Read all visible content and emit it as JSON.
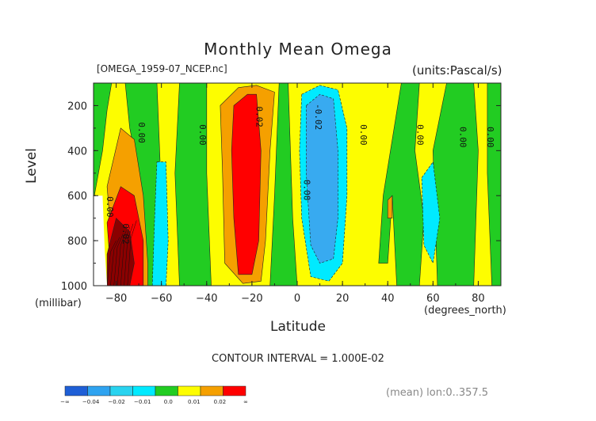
{
  "chart_data": {
    "type": "contour",
    "title": "Monthly Mean Omega",
    "source_label": "[OMEGA_1959-07_NCEP.nc]",
    "units_label": "(units:Pascal/s)",
    "xlabel": "Latitude",
    "x_units": "(degrees_north)",
    "ylabel": "Level",
    "y_units": "(millibar)",
    "xlim": [
      -90,
      90
    ],
    "ylim": [
      1000,
      100
    ],
    "x_ticks": [
      -80,
      -60,
      -40,
      -20,
      0,
      20,
      40,
      60,
      80
    ],
    "y_ticks": [
      200,
      400,
      600,
      800,
      1000
    ],
    "contour_interval": "CONTOUR INTERVAL = 1.000E-02",
    "mean_note": "(mean) lon:0..357.5",
    "colorbar": {
      "labels": [
        "-∞",
        "-0.04",
        "-0.02",
        "-0.01",
        "0.0",
        "0.01",
        "0.02",
        "∞"
      ],
      "colors": [
        "#1f5fd6",
        "#2fa3f0",
        "#29d3ef",
        "#00eaff",
        "#22cc22",
        "#fdfd00",
        "#f5a000",
        "#ff0000"
      ]
    },
    "field_colors": {
      "green": "#22cc22",
      "yellow": "#fdfd00",
      "cyan": "#00eaff",
      "lightblue": "#38aaf0",
      "blue": "#1f5fd6",
      "orange": "#f5a000",
      "red": "#ff0000",
      "darkred": "#8b0000"
    },
    "contour_labels": [
      {
        "text": "0.00",
        "lat": -70,
        "lev": 320
      },
      {
        "text": "0.00",
        "lat": -43,
        "lev": 330
      },
      {
        "text": "0.02",
        "lat": -18,
        "lev": 250
      },
      {
        "text": "-0.02",
        "lat": 8,
        "lev": 250
      },
      {
        "text": "0.00",
        "lat": 28,
        "lev": 330
      },
      {
        "text": "0.00",
        "lat": 3,
        "lev": 575
      },
      {
        "text": "0.00",
        "lat": 53,
        "lev": 330
      },
      {
        "text": "0.00",
        "lat": 72,
        "lev": 340
      },
      {
        "text": "0.00",
        "lat": 84,
        "lev": 340
      },
      {
        "text": "0.00",
        "lat": -84,
        "lev": 650
      },
      {
        "text": "0.02",
        "lat": -77,
        "lev": 770
      }
    ],
    "regions": [
      {
        "color": "green",
        "points": [
          [
            -90,
            100
          ],
          [
            -82,
            100
          ],
          [
            -84,
            220
          ],
          [
            -86,
            400
          ],
          [
            -90,
            620
          ]
        ]
      },
      {
        "color": "green",
        "points": [
          [
            -76,
            100
          ],
          [
            -62,
            100
          ],
          [
            -60,
            600
          ],
          [
            -58,
            1000
          ],
          [
            -68,
            1000
          ],
          [
            -70,
            500
          ],
          [
            -74,
            300
          ]
        ]
      },
      {
        "color": "green",
        "points": [
          [
            -52,
            100
          ],
          [
            -40,
            100
          ],
          [
            -40,
            500
          ],
          [
            -38,
            1000
          ],
          [
            -52,
            1000
          ],
          [
            -54,
            500
          ]
        ]
      },
      {
        "color": "green",
        "points": [
          [
            -8,
            100
          ],
          [
            -4,
            100
          ],
          [
            -2,
            700
          ],
          [
            0,
            1000
          ],
          [
            -12,
            1000
          ],
          [
            -10,
            600
          ]
        ]
      },
      {
        "color": "green",
        "points": [
          [
            46,
            100
          ],
          [
            54,
            100
          ],
          [
            52,
            400
          ],
          [
            56,
            700
          ],
          [
            54,
            1000
          ],
          [
            44,
            1000
          ],
          [
            42,
            600
          ],
          [
            40,
            900
          ],
          [
            36,
            900
          ],
          [
            38,
            600
          ]
        ]
      },
      {
        "color": "green",
        "points": [
          [
            66,
            100
          ],
          [
            78,
            100
          ],
          [
            80,
            400
          ],
          [
            78,
            1000
          ],
          [
            62,
            1000
          ],
          [
            60,
            400
          ]
        ]
      },
      {
        "color": "green",
        "points": [
          [
            84,
            100
          ],
          [
            90,
            100
          ],
          [
            90,
            1000
          ],
          [
            86,
            1000
          ],
          [
            84,
            500
          ]
        ]
      },
      {
        "color": "orange",
        "points": [
          [
            -34,
            200
          ],
          [
            -26,
            120
          ],
          [
            -18,
            110
          ],
          [
            -10,
            140
          ],
          [
            -12,
            400
          ],
          [
            -14,
            800
          ],
          [
            -16,
            980
          ],
          [
            -24,
            990
          ],
          [
            -32,
            900
          ],
          [
            -33,
            500
          ]
        ]
      },
      {
        "color": "red",
        "points": [
          [
            -28,
            200
          ],
          [
            -22,
            150
          ],
          [
            -18,
            150
          ],
          [
            -16,
            400
          ],
          [
            -17,
            800
          ],
          [
            -20,
            950
          ],
          [
            -26,
            950
          ],
          [
            -28,
            700
          ],
          [
            -29,
            400
          ]
        ]
      },
      {
        "color": "cyan",
        "points": [
          [
            2,
            150
          ],
          [
            10,
            110
          ],
          [
            18,
            130
          ],
          [
            22,
            300
          ],
          [
            22,
            600
          ],
          [
            20,
            900
          ],
          [
            14,
            980
          ],
          [
            6,
            960
          ],
          [
            2,
            700
          ],
          [
            1,
            400
          ]
        ]
      },
      {
        "color": "lightblue",
        "points": [
          [
            4,
            200
          ],
          [
            10,
            150
          ],
          [
            16,
            170
          ],
          [
            18,
            400
          ],
          [
            18,
            700
          ],
          [
            16,
            880
          ],
          [
            10,
            900
          ],
          [
            6,
            820
          ],
          [
            4,
            500
          ]
        ]
      },
      {
        "color": "cyan",
        "points": [
          [
            -62,
            450
          ],
          [
            -58,
            450
          ],
          [
            -57,
            800
          ],
          [
            -58,
            1000
          ],
          [
            -64,
            1000
          ],
          [
            -63,
            700
          ]
        ]
      },
      {
        "color": "cyan",
        "points": [
          [
            55,
            520
          ],
          [
            60,
            450
          ],
          [
            63,
            700
          ],
          [
            60,
            900
          ],
          [
            56,
            820
          ]
        ]
      },
      {
        "color": "orange",
        "points": [
          [
            -84,
            560
          ],
          [
            -78,
            300
          ],
          [
            -72,
            350
          ],
          [
            -68,
            600
          ],
          [
            -66,
            900
          ],
          [
            -66,
            1000
          ],
          [
            -76,
            1000
          ],
          [
            -82,
            800
          ]
        ]
      },
      {
        "color": "red",
        "points": [
          [
            -84,
            720
          ],
          [
            -78,
            560
          ],
          [
            -72,
            600
          ],
          [
            -68,
            800
          ],
          [
            -68,
            1000
          ],
          [
            -82,
            1000
          ]
        ]
      },
      {
        "color": "darkred",
        "points": [
          [
            -84,
            860
          ],
          [
            -80,
            700
          ],
          [
            -74,
            760
          ],
          [
            -72,
            900
          ],
          [
            -74,
            1000
          ],
          [
            -84,
            1000
          ]
        ]
      },
      {
        "color": "orange",
        "points": [
          [
            40,
            620
          ],
          [
            42,
            600
          ],
          [
            42,
            700
          ],
          [
            40,
            700
          ]
        ]
      }
    ]
  }
}
